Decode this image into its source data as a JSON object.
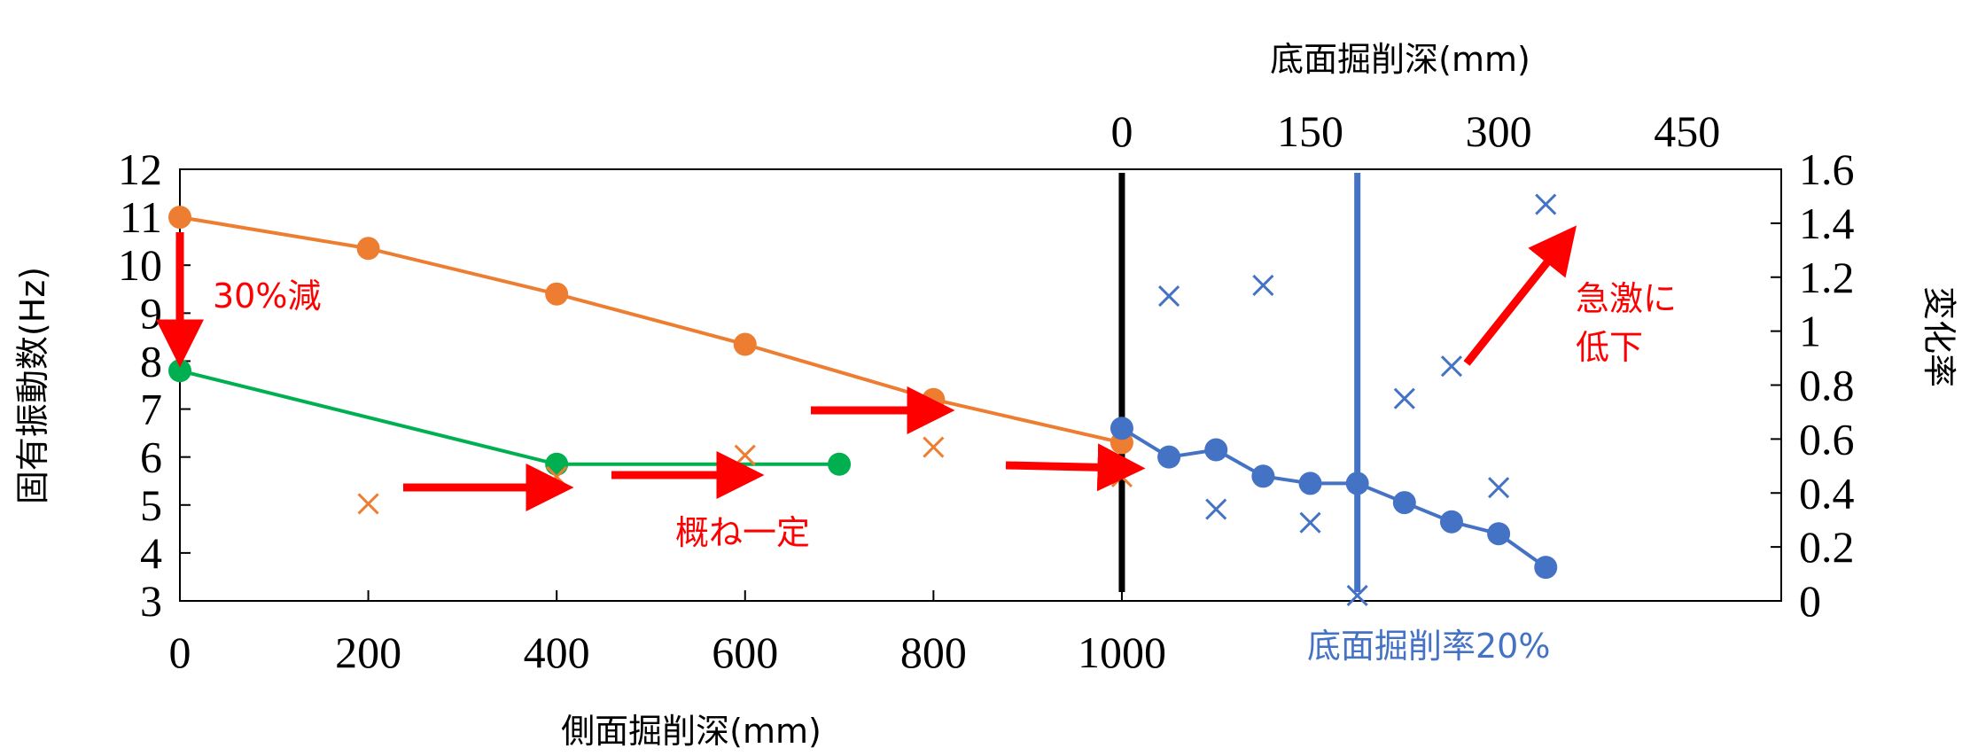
{
  "chart_data": {
    "type": "line",
    "x_bottom": {
      "label": "側面掘削深(mm)",
      "range": [
        0,
        1700
      ],
      "ticks": [
        0,
        200,
        400,
        600,
        800,
        1000
      ],
      "tick_labels": [
        "0",
        "200",
        "400",
        "600",
        "800",
        "1000"
      ]
    },
    "x_top": {
      "label": "底面掘削深(mm)",
      "ticks": [
        0,
        150,
        300,
        450
      ],
      "tick_labels": [
        "0",
        "150",
        "300",
        "450"
      ],
      "zero_at_side": 1000,
      "scale_mm_per_side_mm": 0.75
    },
    "y_left": {
      "label": "固有振動数(Hz)",
      "range": [
        3,
        12
      ],
      "ticks": [
        3,
        4,
        5,
        6,
        7,
        8,
        9,
        10,
        11,
        12
      ],
      "tick_labels": [
        "3",
        "4",
        "5",
        "6",
        "7",
        "8",
        "9",
        "10",
        "11",
        "12"
      ]
    },
    "y_right": {
      "label": "変化率",
      "range": [
        0,
        1.6
      ],
      "ticks": [
        0,
        0.2,
        0.4,
        0.6,
        0.8,
        1,
        1.2,
        1.4,
        1.6
      ],
      "tick_labels": [
        "0",
        "0.2",
        "0.4",
        "0.6",
        "0.8",
        "1",
        "1.2",
        "1.4",
        "1.6"
      ]
    },
    "series": [
      {
        "color": "#ed7d31",
        "axis": "left",
        "style": "line+dots",
        "x": [
          0,
          200,
          400,
          600,
          800,
          1000
        ],
        "y": [
          11.0,
          10.35,
          9.4,
          8.35,
          7.2,
          6.3
        ]
      },
      {
        "color": "#00b050",
        "axis": "left",
        "style": "line+dots",
        "x": [
          0,
          400,
          700
        ],
        "y": [
          7.8,
          5.85,
          5.85
        ]
      },
      {
        "color": "#4472c4",
        "axis": "left",
        "style": "line+dots",
        "x": [
          1000,
          1050,
          1100,
          1150,
          1200,
          1250,
          1300,
          1350,
          1400,
          1450
        ],
        "y": [
          6.6,
          6.0,
          6.15,
          5.6,
          5.45,
          5.45,
          5.05,
          4.65,
          4.4,
          3.7
        ]
      },
      {
        "color": "#ed7d31",
        "axis": "right",
        "style": "cross",
        "x": [
          200,
          400,
          600,
          800,
          1000
        ],
        "y": [
          0.36,
          0.46,
          0.54,
          0.57,
          0.46
        ]
      },
      {
        "color": "#4472c4",
        "axis": "right",
        "style": "cross",
        "x": [
          1050,
          1100,
          1150,
          1200,
          1250,
          1300,
          1350,
          1400,
          1450
        ],
        "y": [
          1.13,
          0.34,
          1.17,
          0.29,
          0.02,
          0.75,
          0.87,
          0.42,
          1.47
        ]
      }
    ],
    "vertical_lines": [
      {
        "x": 1000,
        "color": "#000000"
      },
      {
        "x": 1250,
        "color": "#4472c4"
      }
    ],
    "annotations": {
      "reduction": "30%減",
      "constant": "概ね一定",
      "sharp_drop_1": "急激に",
      "sharp_drop_2": "低下",
      "bottom_rate": "底面掘削率20%"
    },
    "grid": false,
    "legend": "none"
  }
}
